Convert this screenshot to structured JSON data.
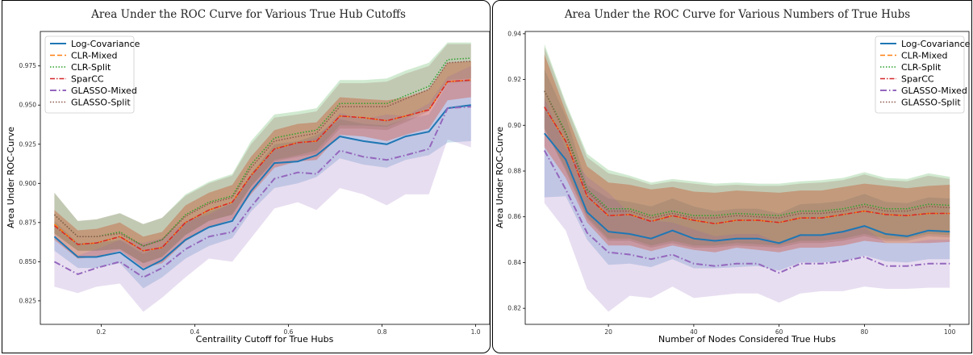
{
  "chart_data": [
    {
      "type": "line",
      "title": "Area Under the ROC Curve for Various True Hub Cutoffs",
      "xlabel": "Centraility Cutoff for True Hubs",
      "ylabel": "Area Under ROC-Curve",
      "xlim": [
        0.07,
        1.03
      ],
      "ylim": [
        0.81,
        0.997
      ],
      "xticks": [
        0.2,
        0.4,
        0.6,
        0.8,
        1.0
      ],
      "xtick_labels": [
        "0.2",
        "0.4",
        "0.6",
        "0.8",
        "1.0"
      ],
      "yticks": [
        0.825,
        0.85,
        0.875,
        0.9,
        0.925,
        0.95,
        0.975
      ],
      "ytick_labels": [
        "0.825",
        "0.850",
        "0.875",
        "0.900",
        "0.925",
        "0.950",
        "0.975"
      ],
      "legend_position": "top-left",
      "x": [
        0.1,
        0.15,
        0.19,
        0.24,
        0.29,
        0.33,
        0.38,
        0.43,
        0.48,
        0.52,
        0.57,
        0.62,
        0.66,
        0.71,
        0.76,
        0.81,
        0.85,
        0.9,
        0.94,
        0.99
      ],
      "series": [
        {
          "name": "Log-Covariance",
          "color": "#1f77b4",
          "dash": "",
          "width": 2,
          "values": [
            0.866,
            0.853,
            0.853,
            0.856,
            0.845,
            0.851,
            0.864,
            0.872,
            0.876,
            0.895,
            0.913,
            0.914,
            0.918,
            0.93,
            0.927,
            0.925,
            0.93,
            0.933,
            0.948,
            0.95
          ],
          "lower": [
            0.857,
            0.846,
            0.846,
            0.849,
            0.833,
            0.84,
            0.852,
            0.86,
            0.865,
            0.882,
            0.897,
            0.9,
            0.904,
            0.916,
            0.912,
            0.91,
            0.915,
            0.918,
            0.926,
            0.927
          ],
          "upper": [
            0.876,
            0.862,
            0.862,
            0.864,
            0.855,
            0.86,
            0.875,
            0.882,
            0.887,
            0.906,
            0.925,
            0.927,
            0.931,
            0.941,
            0.938,
            0.937,
            0.941,
            0.944,
            0.964,
            0.966
          ]
        },
        {
          "name": "CLR-Mixed",
          "color": "#ff7f0e",
          "dash": "6,3",
          "width": 1.5,
          "values": [
            0.874,
            0.861,
            0.862,
            0.866,
            0.857,
            0.859,
            0.875,
            0.883,
            0.888,
            0.905,
            0.922,
            0.926,
            0.927,
            0.943,
            0.942,
            0.94,
            0.943,
            0.947,
            0.965,
            0.966
          ],
          "lower": [
            0.864,
            0.852,
            0.853,
            0.857,
            0.846,
            0.849,
            0.863,
            0.872,
            0.877,
            0.893,
            0.91,
            0.914,
            0.915,
            0.931,
            0.93,
            0.927,
            0.931,
            0.935,
            0.953,
            0.955
          ],
          "upper": [
            0.883,
            0.87,
            0.871,
            0.875,
            0.866,
            0.869,
            0.886,
            0.894,
            0.899,
            0.917,
            0.934,
            0.938,
            0.939,
            0.955,
            0.954,
            0.953,
            0.955,
            0.96,
            0.977,
            0.978
          ]
        },
        {
          "name": "CLR-Split",
          "color": "#2ca02c",
          "dash": "1.5,2",
          "width": 1.5,
          "values": [
            0.88,
            0.866,
            0.866,
            0.869,
            0.86,
            0.864,
            0.88,
            0.888,
            0.892,
            0.912,
            0.929,
            0.932,
            0.934,
            0.951,
            0.951,
            0.951,
            0.956,
            0.962,
            0.979,
            0.98
          ],
          "lower": [
            0.868,
            0.857,
            0.857,
            0.858,
            0.849,
            0.853,
            0.867,
            0.876,
            0.88,
            0.898,
            0.915,
            0.918,
            0.921,
            0.937,
            0.937,
            0.936,
            0.941,
            0.948,
            0.966,
            0.967
          ],
          "upper": [
            0.894,
            0.876,
            0.877,
            0.881,
            0.874,
            0.878,
            0.893,
            0.901,
            0.906,
            0.927,
            0.944,
            0.946,
            0.948,
            0.966,
            0.966,
            0.967,
            0.972,
            0.977,
            0.99,
            0.99
          ]
        },
        {
          "name": "SparCC",
          "color": "#d62728",
          "dash": "6,2,1.5,2",
          "width": 1.5,
          "values": [
            0.873,
            0.861,
            0.862,
            0.866,
            0.857,
            0.859,
            0.875,
            0.883,
            0.888,
            0.905,
            0.922,
            0.926,
            0.927,
            0.943,
            0.942,
            0.94,
            0.943,
            0.947,
            0.965,
            0.966
          ],
          "lower": [
            0.864,
            0.852,
            0.853,
            0.857,
            0.846,
            0.849,
            0.863,
            0.872,
            0.877,
            0.893,
            0.91,
            0.914,
            0.915,
            0.931,
            0.93,
            0.927,
            0.931,
            0.935,
            0.953,
            0.955
          ],
          "upper": [
            0.883,
            0.87,
            0.871,
            0.875,
            0.866,
            0.869,
            0.886,
            0.894,
            0.899,
            0.917,
            0.934,
            0.938,
            0.939,
            0.955,
            0.954,
            0.953,
            0.955,
            0.96,
            0.977,
            0.978
          ]
        },
        {
          "name": "GLASSO-Mixed",
          "color": "#9467bd",
          "dash": "8,3,1.5,3",
          "width": 2,
          "values": [
            0.85,
            0.842,
            0.846,
            0.85,
            0.84,
            0.846,
            0.858,
            0.866,
            0.869,
            0.885,
            0.903,
            0.907,
            0.906,
            0.921,
            0.917,
            0.915,
            0.918,
            0.922,
            0.948,
            0.949
          ],
          "lower": [
            0.834,
            0.83,
            0.834,
            0.836,
            0.818,
            0.827,
            0.84,
            0.852,
            0.85,
            0.865,
            0.884,
            0.888,
            0.883,
            0.897,
            0.893,
            0.886,
            0.893,
            0.893,
            0.928,
            0.923
          ],
          "upper": [
            0.866,
            0.854,
            0.858,
            0.864,
            0.862,
            0.865,
            0.876,
            0.88,
            0.888,
            0.905,
            0.922,
            0.926,
            0.929,
            0.945,
            0.941,
            0.944,
            0.943,
            0.951,
            0.968,
            0.975
          ]
        },
        {
          "name": "GLASSO-Split",
          "color": "#8c564b",
          "dash": "1.5,2",
          "width": 1.5,
          "values": [
            0.88,
            0.866,
            0.866,
            0.868,
            0.86,
            0.864,
            0.879,
            0.887,
            0.891,
            0.91,
            0.927,
            0.93,
            0.932,
            0.949,
            0.949,
            0.949,
            0.954,
            0.96,
            0.977,
            0.978
          ],
          "lower": [
            0.868,
            0.857,
            0.857,
            0.858,
            0.849,
            0.853,
            0.867,
            0.876,
            0.88,
            0.898,
            0.914,
            0.917,
            0.919,
            0.935,
            0.935,
            0.934,
            0.939,
            0.946,
            0.964,
            0.965
          ],
          "upper": [
            0.894,
            0.876,
            0.877,
            0.881,
            0.874,
            0.878,
            0.892,
            0.9,
            0.905,
            0.925,
            0.942,
            0.944,
            0.946,
            0.964,
            0.964,
            0.965,
            0.97,
            0.975,
            0.989,
            0.989
          ]
        }
      ]
    },
    {
      "type": "line",
      "title": "Area Under the ROC Curve for Various Numbers of True Hubs",
      "xlabel": "Number of Nodes Considered True Hubs",
      "ylabel": "Area Under ROC-Curve",
      "xlim": [
        0.5,
        104.5
      ],
      "ylim": [
        0.813,
        0.941
      ],
      "xticks": [
        20,
        40,
        60,
        80,
        100
      ],
      "xtick_labels": [
        "20",
        "40",
        "60",
        "80",
        "100"
      ],
      "yticks": [
        0.82,
        0.84,
        0.86,
        0.88,
        0.9,
        0.92,
        0.94
      ],
      "ytick_labels": [
        "0.82",
        "0.84",
        "0.86",
        "0.88",
        "0.90",
        "0.92",
        "0.94"
      ],
      "legend_position": "top-right",
      "x": [
        5,
        10,
        15,
        20,
        25,
        30,
        35,
        40,
        45,
        50,
        55,
        60,
        65,
        70,
        75,
        80,
        85,
        90,
        95,
        100
      ],
      "series": [
        {
          "name": "Log-Covariance",
          "color": "#1f77b4",
          "dash": "",
          "width": 2,
          "values": [
            0.8965,
            0.885,
            0.862,
            0.8535,
            0.8525,
            0.8505,
            0.854,
            0.8505,
            0.8495,
            0.8505,
            0.8505,
            0.8485,
            0.852,
            0.852,
            0.8535,
            0.856,
            0.8525,
            0.8515,
            0.854,
            0.8535
          ],
          "lower": [
            0.8685,
            0.869,
            0.85,
            0.839,
            0.8395,
            0.838,
            0.8415,
            0.8375,
            0.8375,
            0.838,
            0.8385,
            0.8365,
            0.84,
            0.84,
            0.8405,
            0.843,
            0.8405,
            0.84,
            0.8415,
            0.8415
          ],
          "upper": [
            0.9245,
            0.904,
            0.874,
            0.868,
            0.8665,
            0.8645,
            0.868,
            0.8645,
            0.8625,
            0.8635,
            0.8635,
            0.8615,
            0.8655,
            0.866,
            0.867,
            0.87,
            0.8665,
            0.866,
            0.8685,
            0.868
          ]
        },
        {
          "name": "CLR-Mixed",
          "color": "#ff7f0e",
          "dash": "6,3",
          "width": 1.5,
          "values": [
            0.908,
            0.893,
            0.869,
            0.8605,
            0.861,
            0.858,
            0.8605,
            0.8585,
            0.857,
            0.8585,
            0.8585,
            0.8575,
            0.8595,
            0.8595,
            0.861,
            0.8625,
            0.861,
            0.8605,
            0.8615,
            0.8615
          ],
          "lower": [
            0.8905,
            0.877,
            0.8575,
            0.8475,
            0.8475,
            0.845,
            0.8475,
            0.8455,
            0.8445,
            0.8465,
            0.8455,
            0.8445,
            0.8465,
            0.8465,
            0.8475,
            0.8495,
            0.8485,
            0.8485,
            0.8485,
            0.849
          ],
          "upper": [
            0.931,
            0.906,
            0.882,
            0.875,
            0.874,
            0.872,
            0.873,
            0.871,
            0.8705,
            0.8715,
            0.871,
            0.8705,
            0.8715,
            0.8715,
            0.873,
            0.8745,
            0.8735,
            0.8725,
            0.8735,
            0.874
          ]
        },
        {
          "name": "CLR-Split",
          "color": "#2ca02c",
          "dash": "1.5,2",
          "width": 1.5,
          "values": [
            0.915,
            0.897,
            0.872,
            0.8635,
            0.8635,
            0.8605,
            0.8625,
            0.8605,
            0.8605,
            0.8615,
            0.861,
            0.8605,
            0.8625,
            0.8625,
            0.8635,
            0.8655,
            0.8635,
            0.8635,
            0.8655,
            0.865
          ],
          "lower": [
            0.8985,
            0.881,
            0.86,
            0.8505,
            0.8505,
            0.8475,
            0.8495,
            0.8475,
            0.8475,
            0.8485,
            0.848,
            0.8475,
            0.8495,
            0.8495,
            0.8505,
            0.8525,
            0.8505,
            0.8505,
            0.8525,
            0.852
          ],
          "upper": [
            0.9355,
            0.91,
            0.8875,
            0.8805,
            0.878,
            0.875,
            0.8765,
            0.8755,
            0.8745,
            0.875,
            0.8745,
            0.8745,
            0.8755,
            0.876,
            0.877,
            0.8795,
            0.877,
            0.8765,
            0.879,
            0.8775
          ]
        },
        {
          "name": "SparCC",
          "color": "#d62728",
          "dash": "6,2,1.5,2",
          "width": 1.5,
          "values": [
            0.908,
            0.893,
            0.869,
            0.8605,
            0.861,
            0.858,
            0.8605,
            0.8585,
            0.857,
            0.8585,
            0.8585,
            0.8575,
            0.8595,
            0.8595,
            0.861,
            0.8625,
            0.861,
            0.8605,
            0.8615,
            0.8615
          ],
          "lower": [
            0.8905,
            0.877,
            0.8575,
            0.8475,
            0.8475,
            0.845,
            0.8475,
            0.8455,
            0.8445,
            0.8465,
            0.8455,
            0.8445,
            0.8465,
            0.8465,
            0.8475,
            0.8495,
            0.8485,
            0.8485,
            0.8485,
            0.849
          ],
          "upper": [
            0.931,
            0.906,
            0.882,
            0.875,
            0.874,
            0.872,
            0.873,
            0.871,
            0.8705,
            0.8715,
            0.871,
            0.8705,
            0.8715,
            0.8715,
            0.873,
            0.8745,
            0.8735,
            0.8725,
            0.8735,
            0.874
          ]
        },
        {
          "name": "GLASSO-Mixed",
          "color": "#9467bd",
          "dash": "8,3,1.5,3",
          "width": 2,
          "values": [
            0.889,
            0.872,
            0.853,
            0.8445,
            0.8435,
            0.8415,
            0.8435,
            0.8395,
            0.8385,
            0.8395,
            0.8395,
            0.8355,
            0.8395,
            0.8395,
            0.8405,
            0.8425,
            0.8385,
            0.8385,
            0.8395,
            0.8395
          ],
          "lower": [
            0.866,
            0.854,
            0.8285,
            0.8185,
            0.8255,
            0.8245,
            0.8295,
            0.8245,
            0.8255,
            0.8265,
            0.8265,
            0.8225,
            0.8265,
            0.8275,
            0.8275,
            0.8295,
            0.8285,
            0.8285,
            0.829,
            0.829
          ],
          "upper": [
            0.912,
            0.89,
            0.8775,
            0.8705,
            0.8615,
            0.8585,
            0.8575,
            0.8545,
            0.8515,
            0.8525,
            0.8525,
            0.8485,
            0.8525,
            0.8515,
            0.8535,
            0.8555,
            0.8485,
            0.8485,
            0.85,
            0.85
          ]
        },
        {
          "name": "GLASSO-Split",
          "color": "#8c564b",
          "dash": "1.5,2",
          "width": 1.5,
          "values": [
            0.915,
            0.896,
            0.871,
            0.8625,
            0.8625,
            0.8595,
            0.8615,
            0.8595,
            0.8595,
            0.8605,
            0.86,
            0.8595,
            0.8615,
            0.8615,
            0.8625,
            0.8645,
            0.8625,
            0.8625,
            0.8645,
            0.864
          ],
          "lower": [
            0.8985,
            0.88,
            0.859,
            0.8495,
            0.8495,
            0.8465,
            0.8485,
            0.8465,
            0.8465,
            0.8475,
            0.847,
            0.8465,
            0.8485,
            0.8485,
            0.8495,
            0.8515,
            0.8495,
            0.8495,
            0.8515,
            0.851
          ],
          "upper": [
            0.934,
            0.909,
            0.886,
            0.879,
            0.877,
            0.874,
            0.8755,
            0.8745,
            0.8735,
            0.874,
            0.8735,
            0.8735,
            0.8745,
            0.875,
            0.876,
            0.8785,
            0.876,
            0.8755,
            0.878,
            0.8765
          ]
        }
      ]
    }
  ]
}
